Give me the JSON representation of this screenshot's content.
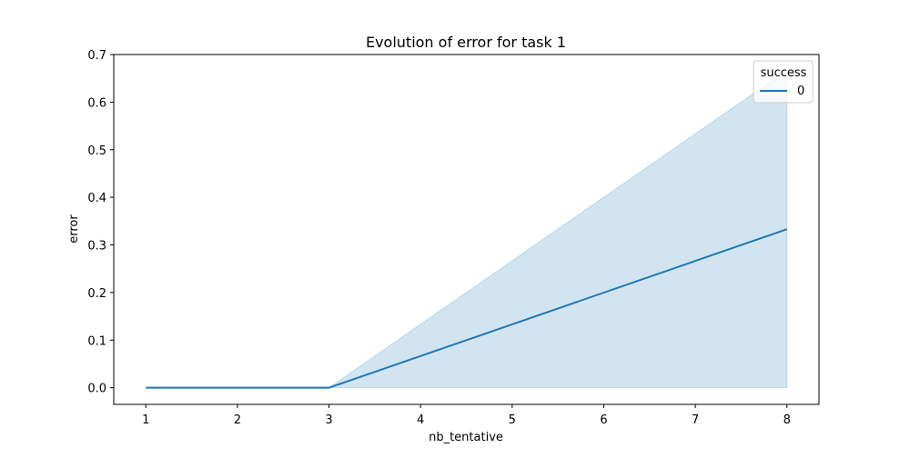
{
  "chart_data": {
    "type": "line",
    "title": "Evolution of error for task 1",
    "xlabel": "nb_tentative",
    "ylabel": "error",
    "xlim": [
      0.65,
      8.35
    ],
    "ylim": [
      -0.035,
      0.7
    ],
    "xticks": [
      1,
      2,
      3,
      4,
      5,
      6,
      7,
      8
    ],
    "yticks": [
      0.0,
      0.1,
      0.2,
      0.3,
      0.4,
      0.5,
      0.6,
      0.7
    ],
    "ytick_labels": [
      "0.0",
      "0.1",
      "0.2",
      "0.3",
      "0.4",
      "0.5",
      "0.6",
      "0.7"
    ],
    "grid": false,
    "legend": {
      "title": "success",
      "placement": "top-right"
    },
    "series": [
      {
        "name": "0",
        "color": "#1f77b4",
        "x": [
          1,
          2,
          3,
          8
        ],
        "y": [
          0.0,
          0.0,
          0.0,
          0.333
        ],
        "ci_lower": [
          0.0,
          0.0,
          0.0,
          0.0
        ],
        "ci_upper": [
          0.0,
          0.0,
          0.0,
          0.667
        ]
      }
    ]
  }
}
